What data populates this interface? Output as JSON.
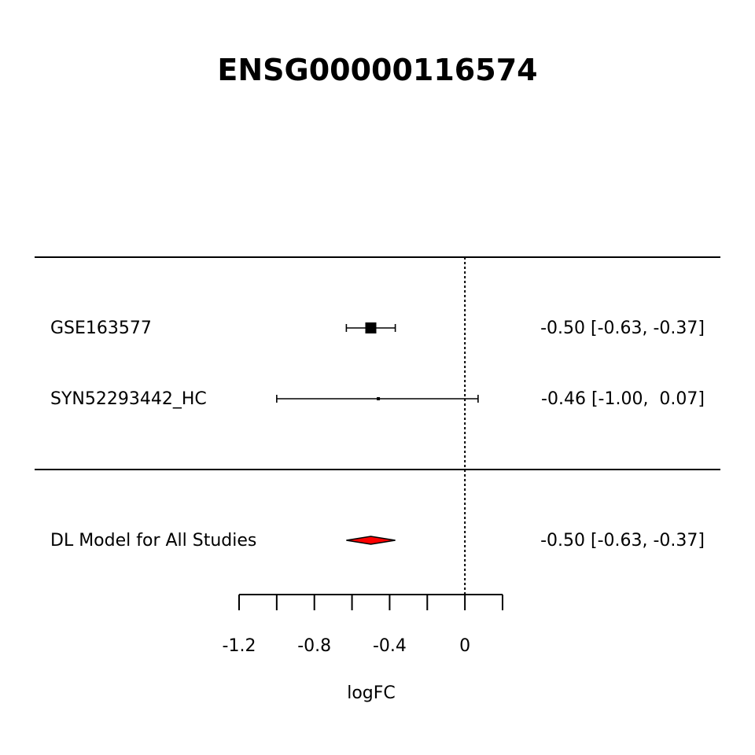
{
  "chart_data": {
    "type": "forest",
    "title": "ENSG00000116574",
    "xlabel": "logFC",
    "xlim": [
      -1.2,
      0.2
    ],
    "x_ticks": [
      -1.2,
      -1.0,
      -0.8,
      -0.6,
      -0.4,
      -0.2,
      0.0,
      0.2
    ],
    "x_tick_labels": [
      "-1.2",
      "",
      "-0.8",
      "",
      "-0.4",
      "",
      "0",
      ""
    ],
    "reference_line": 0,
    "studies": [
      {
        "label": "GSE163577",
        "estimate": -0.5,
        "ci_low": -0.63,
        "ci_high": -0.37,
        "ci_text": "-0.50 [-0.63, -0.37]",
        "weight": 1.0
      },
      {
        "label": "SYN52293442_HC",
        "estimate": -0.46,
        "ci_low": -1.0,
        "ci_high": 0.07,
        "ci_text": "-0.46 [-1.00,  0.07]",
        "weight": 0.06
      }
    ],
    "summary": {
      "label": "DL Model for All Studies",
      "estimate": -0.5,
      "ci_low": -0.63,
      "ci_high": -0.37,
      "ci_text": "-0.50 [-0.63, -0.37]",
      "color": "#ff0000"
    }
  }
}
